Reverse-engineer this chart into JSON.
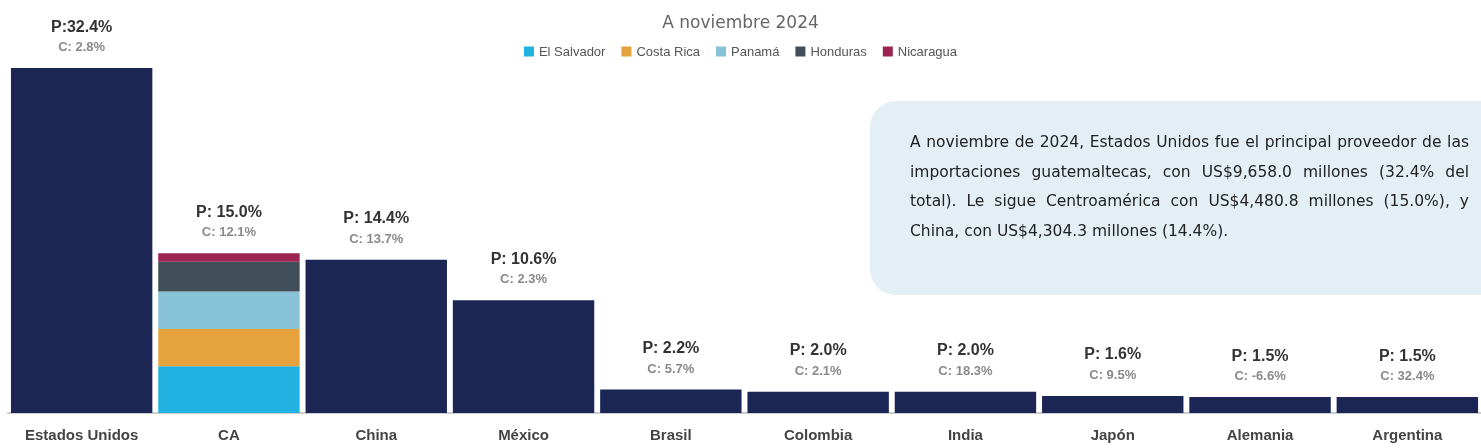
{
  "chart_data": {
    "type": "bar",
    "subtitle": "A noviembre 2024",
    "stacked": true,
    "legend": "top",
    "categories": [
      "Estados Unidos",
      "CA",
      "China",
      "México",
      "Brasil",
      "Colombia",
      "India",
      "Japón",
      "Alemania",
      "Argentina"
    ],
    "series": [
      {
        "color": "#1b2654",
        "values": [
          32.4,
          null,
          14.4,
          10.6,
          2.2,
          2.0,
          2.0,
          1.6,
          1.5,
          1.5
        ],
        "value_labels": [
          "P:32.4%",
          null,
          "P: 14.4%",
          "P: 10.6%",
          "P: 2.2%",
          "P: 2.0%",
          "P: 2.0%",
          "P: 1.6%",
          "P: 1.5%",
          "P: 1.5%"
        ]
      },
      {
        "name": "El Salvador",
        "color": "#22b2e2",
        "values": [
          null,
          4.4,
          null,
          null,
          null,
          null,
          null,
          null,
          null,
          null
        ]
      },
      {
        "name": "Costa Rica",
        "color": "#e6a23c",
        "values": [
          null,
          3.5,
          null,
          null,
          null,
          null,
          null,
          null,
          null,
          null
        ]
      },
      {
        "name": "Panamá",
        "color": "#88c2d6",
        "values": [
          null,
          3.5,
          null,
          null,
          null,
          null,
          null,
          null,
          null,
          null
        ]
      },
      {
        "name": "Honduras",
        "color": "#404e5a",
        "values": [
          null,
          2.8,
          null,
          null,
          null,
          null,
          null,
          null,
          null,
          null
        ]
      },
      {
        "name": "Nicaragua",
        "color": "#9b2450",
        "values": [
          null,
          0.8,
          null,
          null,
          null,
          null,
          null,
          null,
          null,
          null
        ]
      }
    ],
    "totals": [
      null,
      "P: 15.0%",
      null,
      null,
      null,
      null,
      null,
      null,
      null,
      null
    ],
    "annotations": [
      {
        "text": "C: 2.8%",
        "x": "Estados Unidos",
        "y": 32.4
      },
      {
        "text": "C: 12.1%",
        "x": "CA",
        "y": 15.0
      },
      {
        "text": "C: 13.7%",
        "x": "China",
        "y": 14.4
      },
      {
        "text": "C: 2.3%",
        "x": "México",
        "y": 10.6
      },
      {
        "text": "C: 5.7%",
        "x": "Brasil",
        "y": 2.2
      },
      {
        "text": "C: 2.1%",
        "x": "Colombia",
        "y": 2.0
      },
      {
        "text": "C: 18.3%",
        "x": "India",
        "y": 2.0
      },
      {
        "text": "C: 9.5%",
        "x": "Japón",
        "y": 1.6
      },
      {
        "text": "C: -6.6%",
        "x": "Alemania",
        "y": 1.5
      },
      {
        "text": "C: 32.4%",
        "x": "Argentina",
        "y": 1.5
      },
      "A noviembre de 2024, Estados Unidos fue el principal proveedor de las importaciones guatemaltecas, con US$9,658.0 millones (32.4% del total). Le sigue Centroamérica con US$4,480.8 millones (15.0%), y China, con US$4,304.3 millones (14.4%)."
    ]
  }
}
